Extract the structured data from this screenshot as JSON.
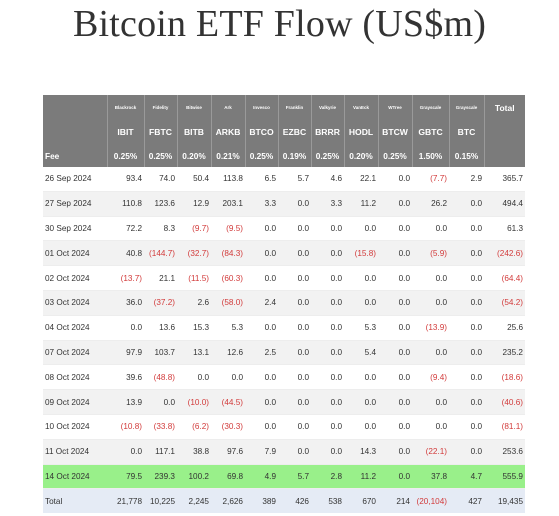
{
  "title": "Bitcoin ETF Flow (US$m)",
  "issuers": [
    "Blackrock",
    "Fidelity",
    "Bitwise",
    "Ark",
    "Invesco",
    "Franklin",
    "Valkyrie",
    "VanEck",
    "WTree",
    "Grayscale",
    "Grayscale"
  ],
  "total_header": "Total",
  "tickers": [
    "IBIT",
    "FBTC",
    "BITB",
    "ARKB",
    "BTCO",
    "EZBC",
    "BRRR",
    "HODL",
    "BTCW",
    "GBTC",
    "BTC"
  ],
  "fee_label": "Fee",
  "fees": [
    "0.25%",
    "0.25%",
    "0.20%",
    "0.21%",
    "0.25%",
    "0.19%",
    "0.25%",
    "0.20%",
    "0.25%",
    "1.50%",
    "0.15%"
  ],
  "rows": [
    {
      "date": "26 Sep 2024",
      "values": [
        "93.4",
        "74.0",
        "50.4",
        "113.8",
        "6.5",
        "5.7",
        "4.6",
        "22.1",
        "0.0",
        "(7.7)",
        "2.9"
      ],
      "total": "365.7"
    },
    {
      "date": "27 Sep 2024",
      "values": [
        "110.8",
        "123.6",
        "12.9",
        "203.1",
        "3.3",
        "0.0",
        "3.3",
        "11.2",
        "0.0",
        "26.2",
        "0.0"
      ],
      "total": "494.4"
    },
    {
      "date": "30 Sep 2024",
      "values": [
        "72.2",
        "8.3",
        "(9.7)",
        "(9.5)",
        "0.0",
        "0.0",
        "0.0",
        "0.0",
        "0.0",
        "0.0",
        "0.0"
      ],
      "total": "61.3"
    },
    {
      "date": "01 Oct 2024",
      "values": [
        "40.8",
        "(144.7)",
        "(32.7)",
        "(84.3)",
        "0.0",
        "0.0",
        "0.0",
        "(15.8)",
        "0.0",
        "(5.9)",
        "0.0"
      ],
      "total": "(242.6)"
    },
    {
      "date": "02 Oct 2024",
      "values": [
        "(13.7)",
        "21.1",
        "(11.5)",
        "(60.3)",
        "0.0",
        "0.0",
        "0.0",
        "0.0",
        "0.0",
        "0.0",
        "0.0"
      ],
      "total": "(64.4)"
    },
    {
      "date": "03 Oct 2024",
      "values": [
        "36.0",
        "(37.2)",
        "2.6",
        "(58.0)",
        "2.4",
        "0.0",
        "0.0",
        "0.0",
        "0.0",
        "0.0",
        "0.0"
      ],
      "total": "(54.2)"
    },
    {
      "date": "04 Oct 2024",
      "values": [
        "0.0",
        "13.6",
        "15.3",
        "5.3",
        "0.0",
        "0.0",
        "0.0",
        "5.3",
        "0.0",
        "(13.9)",
        "0.0"
      ],
      "total": "25.6"
    },
    {
      "date": "07 Oct 2024",
      "values": [
        "97.9",
        "103.7",
        "13.1",
        "12.6",
        "2.5",
        "0.0",
        "0.0",
        "5.4",
        "0.0",
        "0.0",
        "0.0"
      ],
      "total": "235.2"
    },
    {
      "date": "08 Oct 2024",
      "values": [
        "39.6",
        "(48.8)",
        "0.0",
        "0.0",
        "0.0",
        "0.0",
        "0.0",
        "0.0",
        "0.0",
        "(9.4)",
        "0.0"
      ],
      "total": "(18.6)"
    },
    {
      "date": "09 Oct 2024",
      "values": [
        "13.9",
        "0.0",
        "(10.0)",
        "(44.5)",
        "0.0",
        "0.0",
        "0.0",
        "0.0",
        "0.0",
        "0.0",
        "0.0"
      ],
      "total": "(40.6)"
    },
    {
      "date": "10 Oct 2024",
      "values": [
        "(10.8)",
        "(33.8)",
        "(6.2)",
        "(30.3)",
        "0.0",
        "0.0",
        "0.0",
        "0.0",
        "0.0",
        "0.0",
        "0.0"
      ],
      "total": "(81.1)"
    },
    {
      "date": "11 Oct 2024",
      "values": [
        "0.0",
        "117.1",
        "38.8",
        "97.6",
        "7.9",
        "0.0",
        "0.0",
        "14.3",
        "0.0",
        "(22.1)",
        "0.0"
      ],
      "total": "253.6"
    },
    {
      "date": "14 Oct 2024",
      "values": [
        "79.5",
        "239.3",
        "100.2",
        "69.8",
        "4.9",
        "5.7",
        "2.8",
        "11.2",
        "0.0",
        "37.8",
        "4.7"
      ],
      "total": "555.9",
      "highlight": true
    }
  ],
  "total_row": {
    "label": "Total",
    "values": [
      "21,778",
      "10,225",
      "2,245",
      "2,626",
      "389",
      "426",
      "538",
      "670",
      "214",
      "(20,104)",
      "427"
    ],
    "total": "19,435"
  }
}
